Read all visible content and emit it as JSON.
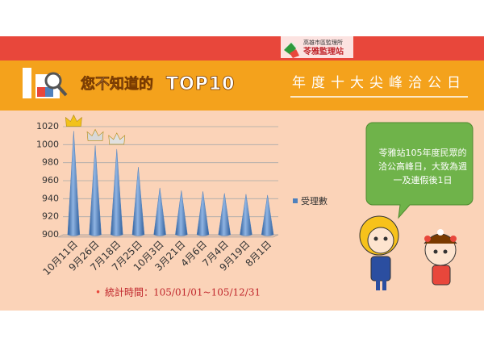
{
  "header": {
    "agency": "高雄市區監理所",
    "station": "苓雅監理站"
  },
  "banner": {
    "title_prefix": "您不知道的",
    "title_emphasis": "TOP10",
    "subtitle": "年度十大尖峰洽公日"
  },
  "chart_data": {
    "type": "cone",
    "categories": [
      "10月11日",
      "9月26日",
      "7月18日",
      "7月25日",
      "10月3日",
      "3月21日",
      "4月6日",
      "7月4日",
      "9月19日",
      "8月1日"
    ],
    "series": [
      {
        "name": "受理數",
        "color": "#4f81bd",
        "values": [
          1015,
          999,
          995,
          975,
          952,
          949,
          948,
          946,
          945,
          944
        ]
      }
    ],
    "ylim": [
      900,
      1020
    ],
    "yticks": [
      900,
      920,
      940,
      960,
      980,
      1000,
      1020
    ],
    "grid": true,
    "period": "統計時間：105/01/01~105/12/31"
  },
  "callout": {
    "lines": [
      "苓雅站105年度民眾的",
      "洽公高峰日，大致為週",
      "一及連假後1日"
    ]
  }
}
